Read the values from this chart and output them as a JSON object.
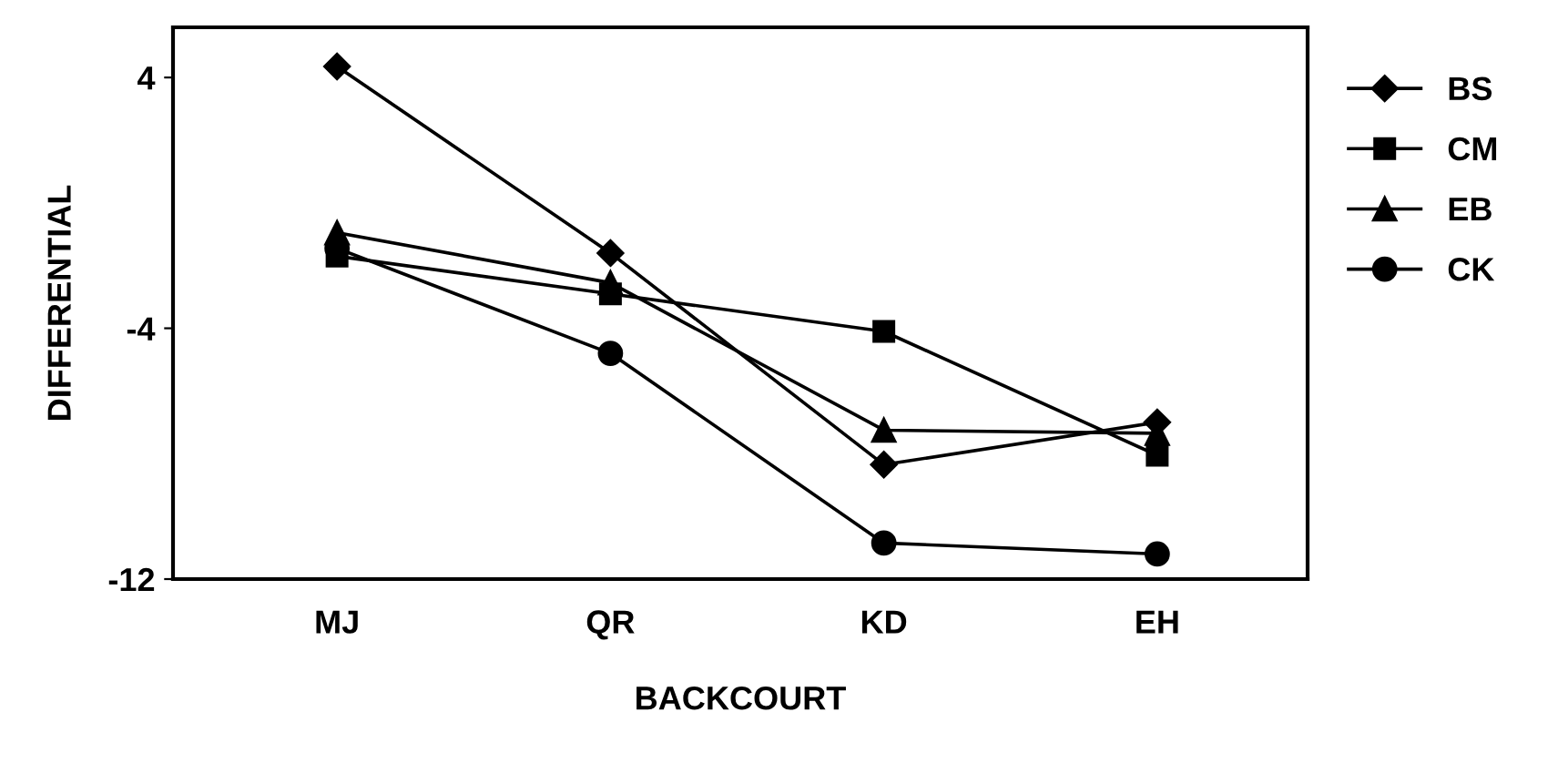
{
  "chart_data": {
    "type": "line",
    "xlabel": "BACKCOURT",
    "ylabel": "DIFFERENTIAL",
    "categories": [
      "MJ",
      "QR",
      "KD",
      "EH"
    ],
    "series": [
      {
        "name": "BS",
        "color": "#000000",
        "marker": "diamond",
        "values": [
          4.35,
          -1.6,
          -8.35,
          -7.0
        ]
      },
      {
        "name": "CM",
        "color": "#000000",
        "marker": "square",
        "values": [
          -1.7,
          -2.9,
          -4.1,
          -8.05
        ]
      },
      {
        "name": "EB",
        "color": "#000000",
        "marker": "triangle",
        "values": [
          -0.95,
          -2.55,
          -7.25,
          -7.35
        ]
      },
      {
        "name": "CK",
        "color": "#000000",
        "marker": "circle",
        "values": [
          -1.45,
          -4.8,
          -10.85,
          -11.2
        ]
      }
    ],
    "ylim": [
      -12,
      5.6
    ],
    "yticks": [
      4,
      -4,
      -12
    ],
    "grid": false,
    "legend": "right",
    "line_style": "solid"
  }
}
